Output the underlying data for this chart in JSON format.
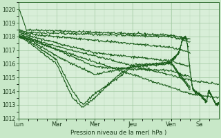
{
  "xlabel": "Pression niveau de la mer( hPa )",
  "ylim": [
    1012,
    1020.5
  ],
  "yticks": [
    1012,
    1013,
    1014,
    1015,
    1016,
    1017,
    1018,
    1019,
    1020
  ],
  "bg_color": "#c8e8c8",
  "plot_bg_color": "#d8eed8",
  "grid_major_color": "#a0c8a0",
  "grid_minor_color": "#b8dab8",
  "line_color": "#1a5c1a",
  "day_labels": [
    "Lun",
    "Mar",
    "Mer",
    "Jeu",
    "Ven",
    "Sa"
  ],
  "day_positions": [
    0.0,
    0.1905,
    0.381,
    0.5714,
    0.7619,
    0.9048
  ],
  "xlim": [
    0.0,
    1.0
  ],
  "lines": [
    {
      "waypoints": [
        [
          0.0,
          1020.1
        ],
        [
          0.04,
          1018.5
        ],
        [
          0.762,
          1018.1
        ],
        [
          0.857,
          1017.8
        ]
      ]
    },
    {
      "waypoints": [
        [
          0.0,
          1018.5
        ],
        [
          0.04,
          1018.3
        ],
        [
          0.762,
          1018.0
        ],
        [
          0.857,
          1017.6
        ]
      ]
    },
    {
      "waypoints": [
        [
          0.0,
          1018.4
        ],
        [
          0.04,
          1018.2
        ],
        [
          0.762,
          1017.2
        ],
        [
          0.857,
          1016.8
        ]
      ]
    },
    {
      "waypoints": [
        [
          0.0,
          1018.3
        ],
        [
          0.04,
          1018.1
        ],
        [
          0.381,
          1016.8
        ],
        [
          0.762,
          1016.2
        ],
        [
          0.857,
          1015.8
        ]
      ]
    },
    {
      "waypoints": [
        [
          0.0,
          1018.2
        ],
        [
          0.04,
          1018.0
        ],
        [
          0.381,
          1015.8
        ],
        [
          0.571,
          1015.6
        ],
        [
          0.762,
          1015.5
        ],
        [
          0.857,
          1015.0
        ]
      ]
    },
    {
      "waypoints": [
        [
          0.0,
          1018.1
        ],
        [
          0.04,
          1017.9
        ],
        [
          0.2,
          1016.5
        ],
        [
          0.381,
          1015.2
        ],
        [
          0.571,
          1015.8
        ],
        [
          0.762,
          1016.1
        ],
        [
          0.857,
          1014.3
        ]
      ]
    },
    {
      "waypoints": [
        [
          0.0,
          1018.0
        ],
        [
          0.04,
          1017.8
        ],
        [
          0.19,
          1016.3
        ],
        [
          0.27,
          1014.0
        ],
        [
          0.32,
          1013.0
        ],
        [
          0.38,
          1013.8
        ],
        [
          0.5,
          1015.0
        ],
        [
          0.571,
          1015.8
        ],
        [
          0.762,
          1016.0
        ],
        [
          0.857,
          1014.1
        ]
      ]
    },
    {
      "waypoints": [
        [
          0.0,
          1018.0
        ],
        [
          0.04,
          1017.7
        ],
        [
          0.19,
          1016.0
        ],
        [
          0.27,
          1013.5
        ],
        [
          0.32,
          1012.8
        ],
        [
          0.38,
          1013.5
        ],
        [
          0.5,
          1015.2
        ],
        [
          0.571,
          1015.9
        ],
        [
          0.762,
          1016.1
        ],
        [
          0.857,
          1014.2
        ]
      ]
    },
    {
      "waypoints": [
        [
          0.0,
          1018.0
        ],
        [
          0.857,
          1013.8
        ],
        [
          1.0,
          1013.5
        ]
      ]
    },
    {
      "waypoints": [
        [
          0.0,
          1018.0
        ],
        [
          0.857,
          1014.8
        ],
        [
          1.0,
          1014.5
        ]
      ]
    }
  ],
  "spike_waypoints": [
    [
      0.762,
      1016.2
    ],
    [
      0.8,
      1016.8
    ],
    [
      0.82,
      1017.8
    ],
    [
      0.835,
      1018.0
    ],
    [
      0.845,
      1017.3
    ],
    [
      0.857,
      1015.5
    ],
    [
      0.87,
      1014.2
    ],
    [
      0.88,
      1014.0
    ],
    [
      0.905,
      1013.8
    ],
    [
      0.92,
      1013.5
    ],
    [
      0.94,
      1013.2
    ],
    [
      0.95,
      1014.0
    ],
    [
      0.96,
      1013.8
    ],
    [
      0.97,
      1013.5
    ],
    [
      0.98,
      1013.2
    ],
    [
      0.99,
      1013.0
    ],
    [
      1.0,
      1013.1
    ]
  ]
}
